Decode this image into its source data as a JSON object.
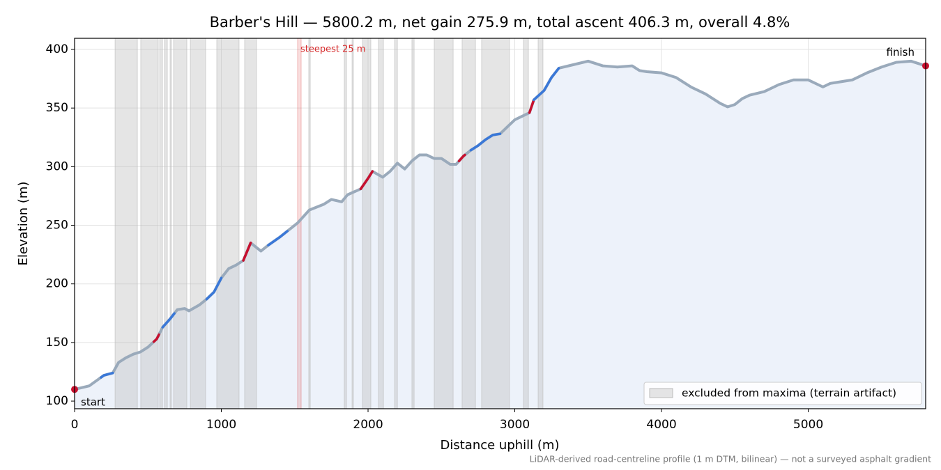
{
  "chart_data": {
    "type": "line",
    "title": "Barber's Hill — 5800.2 m, net gain 275.9 m, total ascent 406.3 m, overall 4.8%",
    "x_label": "Distance uphill (m)",
    "y_label": "Elevation (m)",
    "footnote": "LiDAR-derived road-centreline profile (1 m DTM, bilinear) — not a surveyed asphalt gradient",
    "xlim": [
      0,
      5800.2
    ],
    "ylim": [
      93.5,
      409.5
    ],
    "xticks": [
      0,
      1000,
      2000,
      3000,
      4000,
      5000
    ],
    "yticks": [
      100,
      150,
      200,
      250,
      300,
      350,
      400
    ],
    "grid": true,
    "legend_position": "lower right",
    "series": [
      {
        "name": "profile",
        "color": "#9aaabb",
        "fill_color": "#edf2fa",
        "x": [
          0,
          100,
          200,
          260,
          300,
          350,
          400,
          450,
          500,
          560,
          600,
          650,
          700,
          750,
          780,
          850,
          900,
          950,
          1000,
          1050,
          1100,
          1150,
          1200,
          1270,
          1320,
          1400,
          1450,
          1520,
          1600,
          1700,
          1750,
          1820,
          1860,
          1950,
          2000,
          2030,
          2100,
          2150,
          2200,
          2250,
          2300,
          2350,
          2400,
          2450,
          2500,
          2560,
          2600,
          2650,
          2700,
          2750,
          2800,
          2850,
          2900,
          2950,
          3000,
          3050,
          3100,
          3130,
          3200,
          3250,
          3300,
          3400,
          3500,
          3600,
          3700,
          3800,
          3850,
          3900,
          4000,
          4100,
          4200,
          4300,
          4400,
          4450,
          4500,
          4550,
          4600,
          4700,
          4800,
          4900,
          5000,
          5100,
          5150,
          5200,
          5300,
          5400,
          5500,
          5600,
          5700,
          5800.2
        ],
        "values": [
          110,
          113,
          122,
          124,
          133,
          137,
          140,
          142,
          146,
          153,
          163,
          170,
          178,
          179,
          177,
          182,
          187,
          193,
          205,
          213,
          216,
          220,
          235,
          228,
          233,
          240,
          245,
          252,
          263,
          268,
          272,
          270,
          276,
          281,
          290,
          296,
          291,
          296,
          303,
          298,
          305,
          310,
          310,
          307,
          307,
          302,
          302,
          309,
          314,
          318,
          323,
          327,
          328,
          334,
          340,
          343,
          346,
          357,
          365,
          376,
          384,
          387,
          390,
          386,
          385,
          386,
          382,
          381,
          380,
          376,
          368,
          362,
          354,
          351,
          353,
          358,
          361,
          364,
          370,
          374,
          374,
          368,
          371,
          372,
          374,
          380,
          385,
          389,
          390,
          386
        ]
      }
    ],
    "segments": [
      {
        "start": 180,
        "end": 260,
        "color": "#3a78d8"
      },
      {
        "start": 540,
        "end": 575,
        "color": "#c8102e"
      },
      {
        "start": 600,
        "end": 680,
        "color": "#3a78d8"
      },
      {
        "start": 900,
        "end": 1000,
        "color": "#3a78d8"
      },
      {
        "start": 1150,
        "end": 1200,
        "color": "#c8102e"
      },
      {
        "start": 1320,
        "end": 1450,
        "color": "#3a78d8"
      },
      {
        "start": 1950,
        "end": 2030,
        "color": "#c8102e"
      },
      {
        "start": 2620,
        "end": 2660,
        "color": "#c8102e"
      },
      {
        "start": 2700,
        "end": 2900,
        "color": "#3a78d8"
      },
      {
        "start": 3100,
        "end": 3130,
        "color": "#c8102e"
      },
      {
        "start": 3130,
        "end": 3300,
        "color": "#3a78d8"
      }
    ],
    "excluded_label": "excluded from maxima (terrain artifact)",
    "excluded_color": "#bbbbbb",
    "excluded_ranges": [
      [
        276,
        428
      ],
      [
        451,
        570
      ],
      [
        580,
        599
      ],
      [
        613,
        632
      ],
      [
        651,
        660
      ],
      [
        675,
        765
      ],
      [
        789,
        893
      ],
      [
        969,
        1121
      ],
      [
        1159,
        1240
      ],
      [
        1596,
        1606
      ],
      [
        1838,
        1853
      ],
      [
        1891,
        1900
      ],
      [
        1962,
        2019
      ],
      [
        2071,
        2105
      ],
      [
        2181,
        2200
      ],
      [
        2299,
        2314
      ],
      [
        2451,
        2580
      ],
      [
        2641,
        2732
      ],
      [
        2774,
        2964
      ],
      [
        3059,
        3093
      ],
      [
        3159,
        3192
      ]
    ],
    "steepest_label": "steepest 25 m",
    "steepest_range": [
      1520,
      1544
    ],
    "steepest_color": "#d62728",
    "start_label": "start",
    "finish_label": "finish",
    "endpoint_color": "#c8102e"
  }
}
